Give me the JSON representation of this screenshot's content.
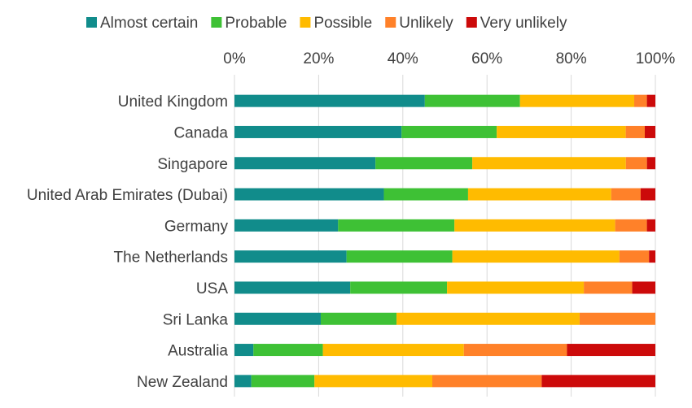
{
  "chart_data": {
    "type": "bar",
    "orientation": "horizontal",
    "stacked": "percent",
    "categories": [
      "United Kingdom",
      "Canada",
      "Singapore",
      "United Arab Emirates (Dubai)",
      "Germany",
      "The Netherlands",
      "USA",
      "Sri Lanka",
      "Australia",
      "New Zealand"
    ],
    "series": [
      {
        "name": "Almost certain",
        "color": "#118C8B",
        "values": [
          45,
          39.5,
          33.5,
          35.5,
          24.5,
          26.5,
          27.5,
          20.5,
          4.5,
          4
        ]
      },
      {
        "name": "Probable",
        "color": "#3EC135",
        "values": [
          22.5,
          22.5,
          23,
          20,
          27.5,
          25,
          23,
          18,
          16.5,
          15
        ]
      },
      {
        "name": "Possible",
        "color": "#FFBB00",
        "values": [
          27,
          30.5,
          36.5,
          34,
          38,
          39.5,
          32.5,
          43.5,
          33.5,
          28
        ]
      },
      {
        "name": "Unlikely",
        "color": "#FF8129",
        "values": [
          3,
          4.5,
          5,
          7,
          7.5,
          7,
          11.5,
          18,
          24.5,
          26
        ]
      },
      {
        "name": "Very unlikely",
        "color": "#CC0A0A",
        "values": [
          2,
          2.5,
          2,
          3.5,
          2,
          1.5,
          5.5,
          0,
          21,
          27
        ]
      }
    ],
    "x_ticks": [
      "0%",
      "20%",
      "40%",
      "60%",
      "80%",
      "100%"
    ],
    "xlim": [
      0,
      100
    ],
    "grid": true,
    "legend_position": "top",
    "x_axis_position": "top"
  }
}
